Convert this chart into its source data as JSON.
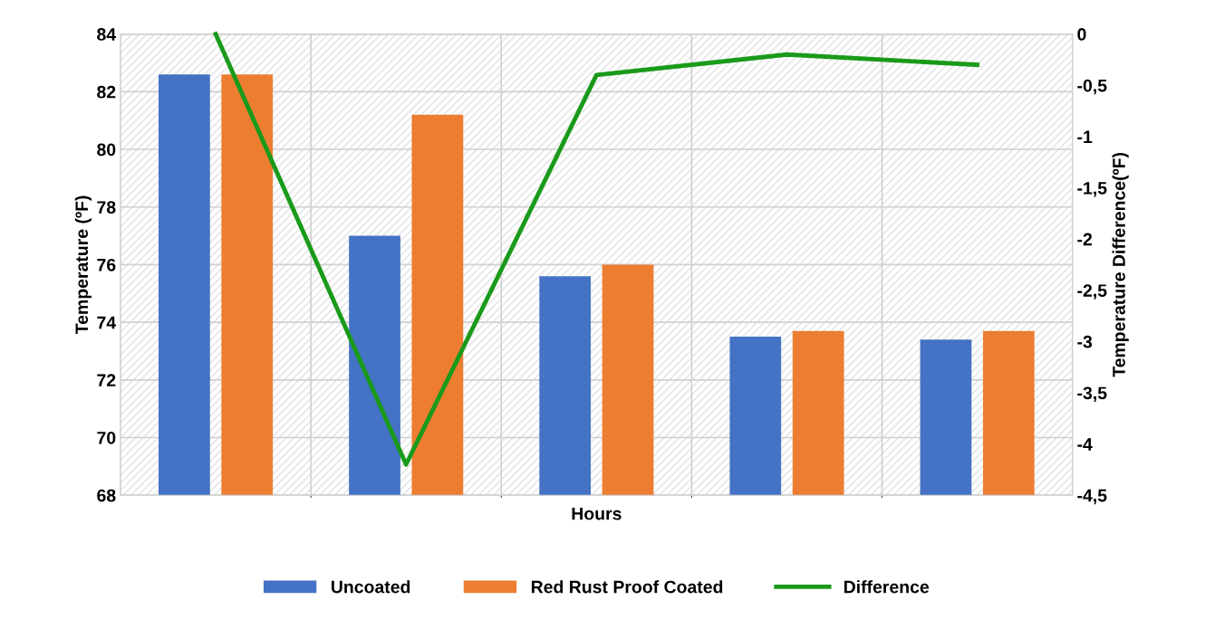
{
  "chart_data": {
    "type": "bar",
    "xlabel": "Hours",
    "ylabel": "Temperature (ºF)",
    "y2label": "Temperature Difference(ºF)",
    "categories": [
      null,
      null,
      null,
      null,
      null
    ],
    "series": [
      {
        "name": "Uncoated",
        "color": "#4472c4",
        "values": [
          82.6,
          77.0,
          75.6,
          73.5,
          73.4
        ]
      },
      {
        "name": "Red Rust Proof Coated",
        "color": "#ed7d31",
        "values": [
          82.6,
          81.2,
          76.0,
          73.7,
          73.7
        ]
      },
      {
        "name": "Difference",
        "color": "#1a9a1a",
        "type": "line",
        "axis": "y2",
        "values": [
          0,
          -4.2,
          -0.4,
          -0.2,
          -0.3
        ]
      }
    ],
    "ylim": [
      68,
      84
    ],
    "yticks": [
      68,
      70,
      72,
      74,
      76,
      78,
      80,
      82,
      84
    ],
    "y2lim": [
      -4.5,
      0
    ],
    "y2ticks": [
      {
        "value": -4.5,
        "label": "-4,5"
      },
      -4,
      {
        "value": -3.5,
        "label": "-3,5"
      },
      -3,
      {
        "value": -2.5,
        "label": "-2,5"
      },
      -2,
      {
        "value": -1.5,
        "label": "-1,5"
      },
      -1,
      {
        "value": -0.5,
        "label": "-0,5"
      },
      0
    ],
    "grid": true,
    "legend": "bottom",
    "marker": "none",
    "line_style": "solid"
  }
}
